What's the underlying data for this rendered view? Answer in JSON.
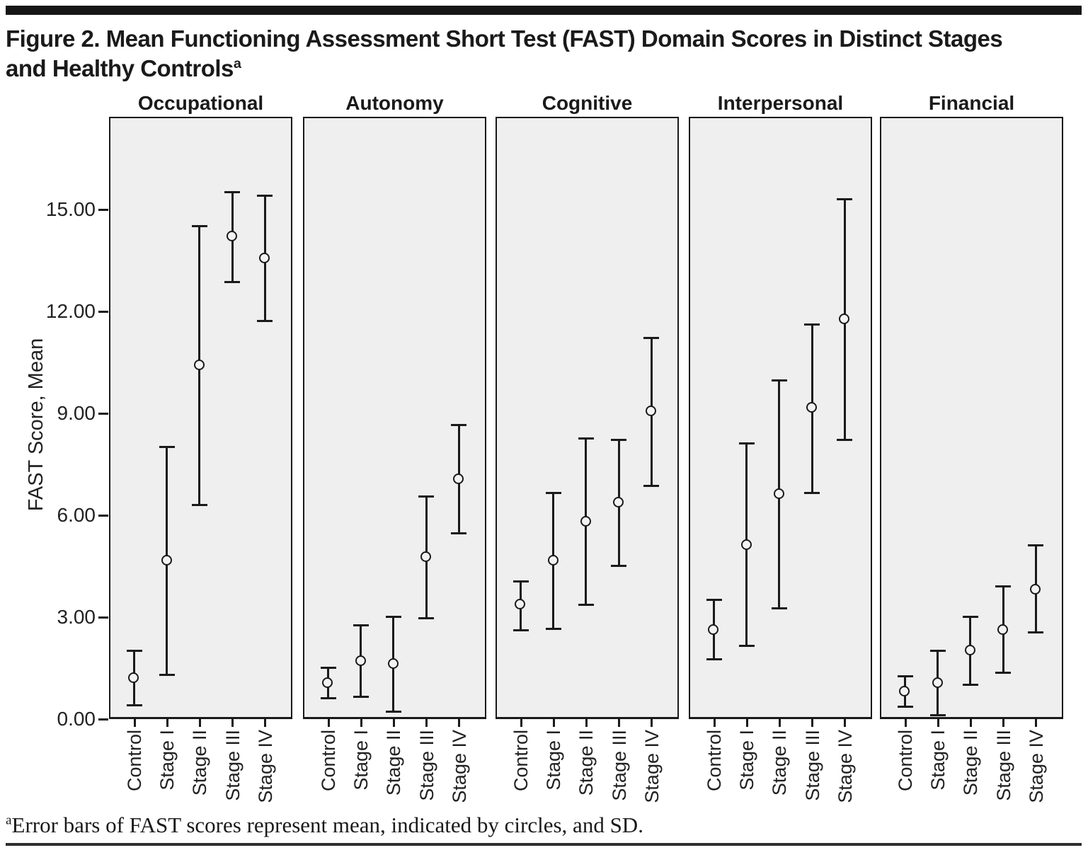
{
  "figure": {
    "title": {
      "line1": "Figure 2. Mean Functioning Assessment Short Test (FAST) Domain Scores in Distinct Stages",
      "line2": "and Healthy Controls",
      "superscript": "a"
    },
    "footnote": {
      "superscript": "a",
      "text": "Error bars of FAST scores represent mean, indicated by circles, and SD."
    }
  },
  "colors": {
    "ink": "#1a1a1a",
    "panel_background": "#f0efef",
    "page_background": "#ffffff"
  },
  "chart_data": {
    "type": "scatter",
    "subtype": "mean-with-sd-error-bars",
    "title": "Mean FAST Domain Scores in Distinct Stages and Healthy Controls",
    "ylabel": "FAST Score, Mean",
    "xlabel": "",
    "grid": false,
    "legend_position": "none",
    "ylim": [
      0,
      17.7
    ],
    "ytick_labels": [
      "0.00",
      "3.00",
      "6.00",
      "9.00",
      "12.00",
      "15.00"
    ],
    "ytick_values": [
      0,
      3,
      6,
      9,
      12,
      15
    ],
    "categories": [
      "Control",
      "Stage I",
      "Stage II",
      "Stage III",
      "Stage IV"
    ],
    "panels": [
      {
        "label": "Occupational",
        "points": [
          {
            "category": "Control",
            "mean": 1.2,
            "sd_low": 0.4,
            "sd_high": 2.0
          },
          {
            "category": "Stage I",
            "mean": 4.65,
            "sd_low": 1.3,
            "sd_high": 8.0
          },
          {
            "category": "Stage II",
            "mean": 10.4,
            "sd_low": 6.3,
            "sd_high": 14.5
          },
          {
            "category": "Stage III",
            "mean": 14.2,
            "sd_low": 12.85,
            "sd_high": 15.5
          },
          {
            "category": "Stage IV",
            "mean": 13.55,
            "sd_low": 11.7,
            "sd_high": 15.4
          }
        ]
      },
      {
        "label": "Autonomy",
        "points": [
          {
            "category": "Control",
            "mean": 1.05,
            "sd_low": 0.6,
            "sd_high": 1.5
          },
          {
            "category": "Stage I",
            "mean": 1.7,
            "sd_low": 0.65,
            "sd_high": 2.75
          },
          {
            "category": "Stage II",
            "mean": 1.6,
            "sd_low": 0.2,
            "sd_high": 3.0
          },
          {
            "category": "Stage III",
            "mean": 4.75,
            "sd_low": 2.95,
            "sd_high": 6.55
          },
          {
            "category": "Stage IV",
            "mean": 7.05,
            "sd_low": 5.45,
            "sd_high": 8.65
          }
        ]
      },
      {
        "label": "Cognitive",
        "points": [
          {
            "category": "Control",
            "mean": 3.35,
            "sd_low": 2.6,
            "sd_high": 4.05
          },
          {
            "category": "Stage I",
            "mean": 4.65,
            "sd_low": 2.65,
            "sd_high": 6.65
          },
          {
            "category": "Stage II",
            "mean": 5.8,
            "sd_low": 3.35,
            "sd_high": 8.25
          },
          {
            "category": "Stage III",
            "mean": 6.35,
            "sd_low": 4.5,
            "sd_high": 8.2
          },
          {
            "category": "Stage IV",
            "mean": 9.05,
            "sd_low": 6.85,
            "sd_high": 11.2
          }
        ]
      },
      {
        "label": "Interpersonal",
        "points": [
          {
            "category": "Control",
            "mean": 2.6,
            "sd_low": 1.75,
            "sd_high": 3.5
          },
          {
            "category": "Stage I",
            "mean": 5.1,
            "sd_low": 2.15,
            "sd_high": 8.1
          },
          {
            "category": "Stage II",
            "mean": 6.6,
            "sd_low": 3.25,
            "sd_high": 9.95
          },
          {
            "category": "Stage III",
            "mean": 9.15,
            "sd_low": 6.65,
            "sd_high": 11.6
          },
          {
            "category": "Stage IV",
            "mean": 11.75,
            "sd_low": 8.2,
            "sd_high": 15.3
          }
        ]
      },
      {
        "label": "Financial",
        "points": [
          {
            "category": "Control",
            "mean": 0.8,
            "sd_low": 0.35,
            "sd_high": 1.25
          },
          {
            "category": "Stage I",
            "mean": 1.05,
            "sd_low": 0.1,
            "sd_high": 2.0
          },
          {
            "category": "Stage II",
            "mean": 2.0,
            "sd_low": 1.0,
            "sd_high": 3.0
          },
          {
            "category": "Stage III",
            "mean": 2.6,
            "sd_low": 1.35,
            "sd_high": 3.9
          },
          {
            "category": "Stage IV",
            "mean": 3.8,
            "sd_low": 2.55,
            "sd_high": 5.1
          }
        ]
      }
    ]
  }
}
